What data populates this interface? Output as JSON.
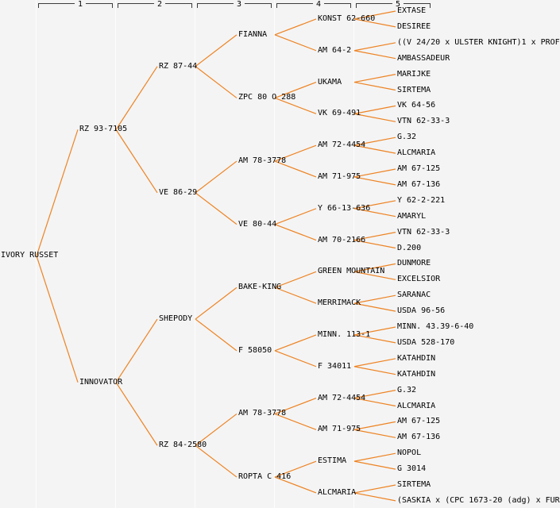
{
  "header": {
    "columns": [
      "1",
      "2",
      "3",
      "4",
      "5"
    ]
  },
  "colors": {
    "background": "#f4f4f4",
    "edge": "#ee8322",
    "text": "#000000",
    "separator": "#fdfdfd",
    "bracket": "#3c3c3c"
  },
  "tree": {
    "label": "IVORY RUSSET",
    "children": [
      {
        "label": "RZ 93-7105",
        "children": [
          {
            "label": "RZ 87-44",
            "children": [
              {
                "label": "FIANNA",
                "children": [
                  {
                    "label": "KONST 62-660",
                    "children": [
                      {
                        "label": "EXTASE"
                      },
                      {
                        "label": "DESIREE"
                      }
                    ]
                  },
                  {
                    "label": "AM 64-2",
                    "children": [
                      {
                        "label": "((V 24/20 x ULSTER KNIGHT)1 x PROF"
                      },
                      {
                        "label": "AMBASSADEUR"
                      }
                    ]
                  }
                ]
              },
              {
                "label": "ZPC 80 O 288",
                "children": [
                  {
                    "label": "UKAMA",
                    "children": [
                      {
                        "label": "MARIJKE"
                      },
                      {
                        "label": "SIRTEMA"
                      }
                    ]
                  },
                  {
                    "label": "VK 69-491",
                    "children": [
                      {
                        "label": "VK 64-56"
                      },
                      {
                        "label": "VTN 62-33-3"
                      }
                    ]
                  }
                ]
              }
            ]
          },
          {
            "label": "VE 86-29",
            "children": [
              {
                "label": "AM 78-3778",
                "children": [
                  {
                    "label": "AM 72-4454",
                    "children": [
                      {
                        "label": "G.32"
                      },
                      {
                        "label": "ALCMARIA"
                      }
                    ]
                  },
                  {
                    "label": "AM 71-975",
                    "children": [
                      {
                        "label": "AM 67-125"
                      },
                      {
                        "label": "AM 67-136"
                      }
                    ]
                  }
                ]
              },
              {
                "label": "VE 80-44",
                "children": [
                  {
                    "label": "Y 66-13-636",
                    "children": [
                      {
                        "label": "Y 62-2-221"
                      },
                      {
                        "label": "AMARYL"
                      }
                    ]
                  },
                  {
                    "label": "AM 70-2166",
                    "children": [
                      {
                        "label": "VTN 62-33-3"
                      },
                      {
                        "label": "D.200"
                      }
                    ]
                  }
                ]
              }
            ]
          }
        ]
      },
      {
        "label": "INNOVATOR",
        "children": [
          {
            "label": "SHEPODY",
            "children": [
              {
                "label": "BAKE-KING",
                "children": [
                  {
                    "label": "GREEN MOUNTAIN",
                    "children": [
                      {
                        "label": "DUNMORE"
                      },
                      {
                        "label": "EXCELSIOR"
                      }
                    ]
                  },
                  {
                    "label": "MERRIMACK",
                    "children": [
                      {
                        "label": "SARANAC"
                      },
                      {
                        "label": "USDA 96-56"
                      }
                    ]
                  }
                ]
              },
              {
                "label": "F 58050",
                "children": [
                  {
                    "label": "MINN. 113-1",
                    "children": [
                      {
                        "label": "MINN. 43.39-6-40"
                      },
                      {
                        "label": "USDA 528-170"
                      }
                    ]
                  },
                  {
                    "label": "F 34011",
                    "children": [
                      {
                        "label": "KATAHDIN"
                      },
                      {
                        "label": "KATAHDIN"
                      }
                    ]
                  }
                ]
              }
            ]
          },
          {
            "label": "RZ 84-2580",
            "children": [
              {
                "label": "AM 78-3778",
                "children": [
                  {
                    "label": "AM 72-4454",
                    "children": [
                      {
                        "label": "G.32"
                      },
                      {
                        "label": "ALCMARIA"
                      }
                    ]
                  },
                  {
                    "label": "AM 71-975",
                    "children": [
                      {
                        "label": "AM 67-125"
                      },
                      {
                        "label": "AM 67-136"
                      }
                    ]
                  }
                ]
              },
              {
                "label": "ROPTA C 416",
                "children": [
                  {
                    "label": "ESTIMA",
                    "children": [
                      {
                        "label": "NOPOL"
                      },
                      {
                        "label": "G 3014"
                      }
                    ]
                  },
                  {
                    "label": "ALCMARIA",
                    "children": [
                      {
                        "label": "SIRTEMA"
                      },
                      {
                        "label": "(SASKIA x (CPC 1673-20 (adg) x FUR"
                      }
                    ]
                  }
                ]
              }
            ]
          }
        ]
      }
    ]
  }
}
